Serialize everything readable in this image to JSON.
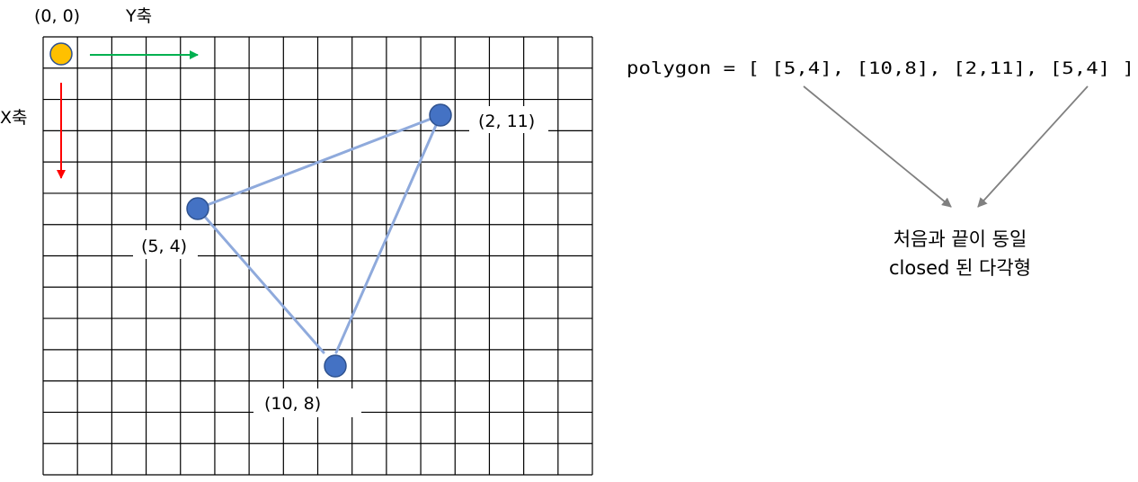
{
  "labels": {
    "origin": "(0, 0)",
    "y_axis": "Y축",
    "x_axis": "X축"
  },
  "grid": {
    "rows": 14,
    "cols": 16
  },
  "points": [
    {
      "label": "(5, 4)",
      "x": 5,
      "y": 4
    },
    {
      "label": "(10, 8)",
      "x": 10,
      "y": 8
    },
    {
      "label": "(2, 11)",
      "x": 2,
      "y": 11
    }
  ],
  "code": "polygon = [ [5,4], [10,8], [2,11], [5,4] ]",
  "note": {
    "line1": "처음과 끝이 동일",
    "line2": "closed 된 다각형"
  },
  "colors": {
    "grid": "#000000",
    "origin": "#ffc000",
    "point": "#4472c4",
    "edge": "#8faadc",
    "y_arrow": "#00b050",
    "x_arrow": "#ff0000",
    "pointer": "#808080"
  }
}
